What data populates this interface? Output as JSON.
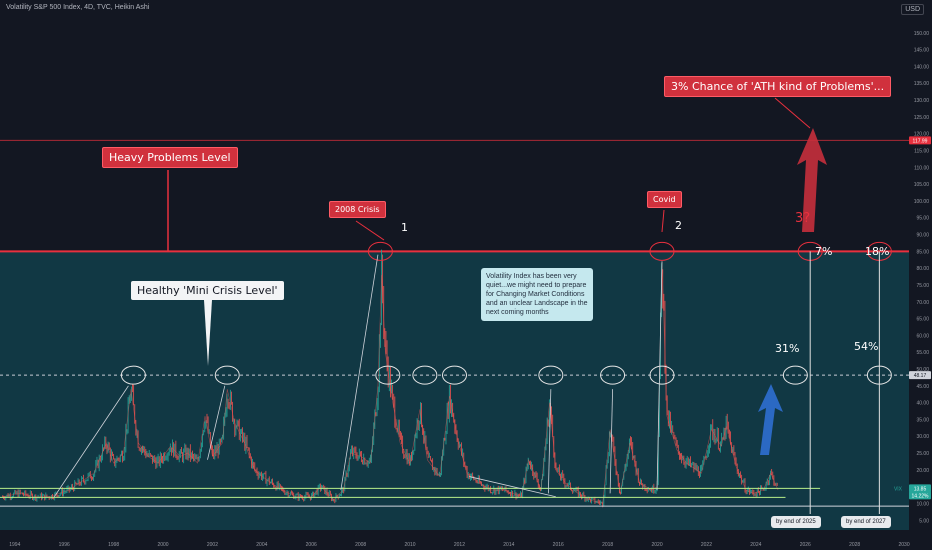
{
  "header": {
    "title": "Volatility S&P 500 Index, 4D, TVC, Heikin Ashi",
    "currency": "USD"
  },
  "chart_data": {
    "type": "line",
    "symbol": "VIX",
    "x_axis": {
      "range": [
        1993.4,
        2030.2
      ],
      "ticks": [
        "1994",
        "1996",
        "1998",
        "2000",
        "2002",
        "2004",
        "2006",
        "2008",
        "2010",
        "2012",
        "2014",
        "2016",
        "2018",
        "2020",
        "2022",
        "2024",
        "2026",
        "2028",
        "2030"
      ]
    },
    "y_axis": {
      "range": [
        3,
        155
      ],
      "ticks": [
        5,
        10,
        15,
        20,
        25,
        30,
        35,
        40,
        45,
        50,
        55,
        60,
        65,
        70,
        75,
        80,
        85,
        90,
        95,
        100,
        105,
        110,
        115,
        120,
        125,
        130,
        135,
        140,
        145,
        150
      ]
    },
    "price_labels": {
      "high": "117.99",
      "mid": "48.17",
      "last_vix": "VIX",
      "last_a": "13.85",
      "last_b": "14.22%"
    },
    "levels": [
      {
        "value": 85,
        "label": "Heavy Problems Level",
        "color": "#e8303e"
      },
      {
        "value": 48.17,
        "label": "Healthy 'Mini Crisis Level'",
        "color": "#c8ccd5"
      },
      {
        "value": 117.99,
        "label": "",
        "color": "#e8303e"
      }
    ],
    "series": [
      {
        "values": [
          [
            1993.5,
            12
          ],
          [
            1994.2,
            13
          ],
          [
            1994.8,
            12
          ],
          [
            1995.4,
            12
          ],
          [
            1996.2,
            14
          ],
          [
            1996.8,
            17
          ],
          [
            1997.2,
            19
          ],
          [
            1997.7,
            28
          ],
          [
            1998.0,
            22
          ],
          [
            1998.4,
            25
          ],
          [
            1998.7,
            44
          ],
          [
            1999.0,
            28
          ],
          [
            1999.4,
            24
          ],
          [
            1999.8,
            22
          ],
          [
            2000.3,
            27
          ],
          [
            2000.7,
            24
          ],
          [
            2001.0,
            25
          ],
          [
            2001.4,
            22
          ],
          [
            2001.7,
            36
          ],
          [
            2002.0,
            24
          ],
          [
            2002.4,
            28
          ],
          [
            2002.6,
            44
          ],
          [
            2002.9,
            34
          ],
          [
            2003.3,
            28
          ],
          [
            2003.7,
            20
          ],
          [
            2004.2,
            17
          ],
          [
            2004.8,
            14
          ],
          [
            2005.4,
            12
          ],
          [
            2006.0,
            12
          ],
          [
            2006.4,
            15
          ],
          [
            2006.9,
            11
          ],
          [
            2007.3,
            14
          ],
          [
            2007.6,
            25
          ],
          [
            2008.0,
            24
          ],
          [
            2008.4,
            22
          ],
          [
            2008.7,
            45
          ],
          [
            2008.85,
            78
          ],
          [
            2009.0,
            55
          ],
          [
            2009.3,
            40
          ],
          [
            2009.6,
            28
          ],
          [
            2010.0,
            22
          ],
          [
            2010.4,
            38
          ],
          [
            2010.7,
            23
          ],
          [
            2011.2,
            18
          ],
          [
            2011.6,
            42
          ],
          [
            2011.9,
            30
          ],
          [
            2012.3,
            19
          ],
          [
            2012.8,
            16
          ],
          [
            2013.3,
            14
          ],
          [
            2013.8,
            14
          ],
          [
            2014.5,
            12
          ],
          [
            2014.8,
            23
          ],
          [
            2015.3,
            14
          ],
          [
            2015.65,
            40
          ],
          [
            2015.9,
            20
          ],
          [
            2016.3,
            16
          ],
          [
            2016.8,
            13
          ],
          [
            2017.3,
            11
          ],
          [
            2017.8,
            10
          ],
          [
            2018.1,
            32
          ],
          [
            2018.5,
            13
          ],
          [
            2018.9,
            28
          ],
          [
            2019.3,
            16
          ],
          [
            2019.8,
            14
          ],
          [
            2020.0,
            15
          ],
          [
            2020.2,
            82
          ],
          [
            2020.4,
            36
          ],
          [
            2020.8,
            26
          ],
          [
            2021.2,
            22
          ],
          [
            2021.8,
            19
          ],
          [
            2022.2,
            32
          ],
          [
            2022.6,
            27
          ],
          [
            2022.8,
            33
          ],
          [
            2023.2,
            21
          ],
          [
            2023.6,
            14
          ],
          [
            2023.9,
            13
          ],
          [
            2024.3,
            14
          ],
          [
            2024.6,
            19
          ],
          [
            2024.9,
            14
          ]
        ]
      }
    ],
    "annotations": [
      {
        "id": "chance",
        "text": "3% Chance of 'ATH kind of Problems'..."
      },
      {
        "id": "heavy",
        "text": "Heavy Problems Level"
      },
      {
        "id": "crisis2008",
        "text": "2008 Crisis"
      },
      {
        "id": "covid",
        "text": "Covid"
      },
      {
        "id": "healthy",
        "text": "Healthy 'Mini Crisis Level'"
      },
      {
        "id": "note",
        "text": "Volatility Index has been very quiet...we might need to prepare for Changing Market Conditions and an unclear Landscape in the next coming months"
      },
      {
        "id": "n1",
        "text": "1"
      },
      {
        "id": "n2",
        "text": "2"
      },
      {
        "id": "q3",
        "text": "3?"
      },
      {
        "id": "p7",
        "text": "7%"
      },
      {
        "id": "p18",
        "text": "18%"
      },
      {
        "id": "p31",
        "text": "31%"
      },
      {
        "id": "p54",
        "text": "54%"
      },
      {
        "id": "end2025",
        "text": "by end of 2025"
      },
      {
        "id": "end2027",
        "text": "by end of 2027"
      }
    ],
    "grid": false,
    "legend": "none"
  },
  "colors": {
    "bg": "#131722",
    "zone": "#123e4a",
    "up": "#26a69a",
    "down": "#ef5350",
    "red": "#e8303e",
    "blue": "#2962ff"
  }
}
